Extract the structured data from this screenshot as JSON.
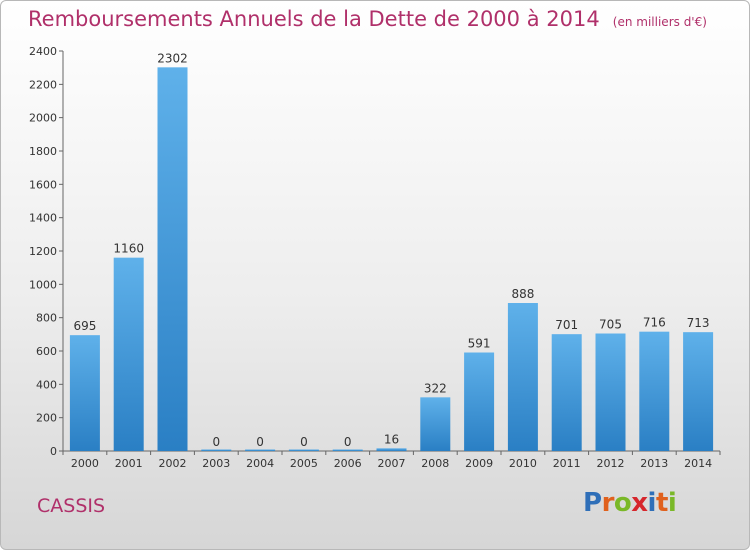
{
  "header": {
    "title": "Remboursements Annuels de la Dette de 2000 à 2014",
    "unit": "(en milliers d'€)"
  },
  "commune": "CASSIS",
  "logo": {
    "text": "Proxiti",
    "letters": [
      {
        "ch": "P",
        "color": "#2f6fb8"
      },
      {
        "ch": "r",
        "color": "#e0611d"
      },
      {
        "ch": "o",
        "color": "#7ab828"
      },
      {
        "ch": "x",
        "color": "#d6262c"
      },
      {
        "ch": "i",
        "color": "#2f6fb8"
      },
      {
        "ch": "t",
        "color": "#e0611d"
      },
      {
        "ch": "i",
        "color": "#7ab828"
      }
    ]
  },
  "colors": {
    "title": "#b0306a",
    "bar_top": "#5fb1ea",
    "bar_bottom": "#2a7fc4"
  },
  "chart_data": {
    "type": "bar",
    "title": "Remboursements Annuels de la Dette de 2000 à 2014",
    "categories": [
      "2000",
      "2001",
      "2002",
      "2003",
      "2004",
      "2005",
      "2006",
      "2007",
      "2008",
      "2009",
      "2010",
      "2011",
      "2012",
      "2013",
      "2014"
    ],
    "values": [
      695,
      1160,
      2302,
      0,
      0,
      0,
      0,
      16,
      322,
      591,
      888,
      701,
      705,
      716,
      713
    ],
    "ylim": [
      0,
      2400
    ],
    "yticks": [
      0,
      200,
      400,
      600,
      800,
      1000,
      1200,
      1400,
      1600,
      1800,
      2000,
      2200,
      2400
    ],
    "grid": false,
    "data_labels": true
  }
}
